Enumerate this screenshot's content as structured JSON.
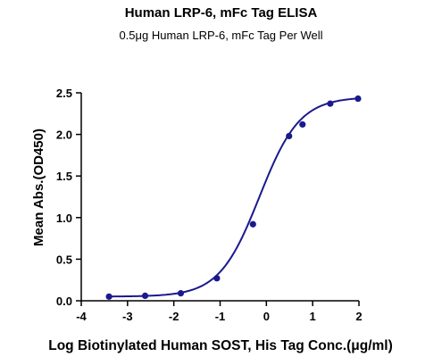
{
  "chart_data": {
    "type": "line",
    "title": "Human LRP-6, mFc Tag  ELISA",
    "subtitle": "0.5μg Human LRP-6, mFc Tag Per Well",
    "xlabel": "Log Biotinylated Human SOST, His Tag Conc.(μg/ml)",
    "ylabel": "Mean Abs.(OD450)",
    "xlim": [
      -4,
      2
    ],
    "ylim": [
      0,
      2.5
    ],
    "xticks": [
      "-4",
      "-3",
      "-2",
      "-1",
      "0",
      "1",
      "2"
    ],
    "yticks": [
      "0.0",
      "0.5",
      "1.0",
      "1.5",
      "2.0",
      "2.5"
    ],
    "grid": false,
    "color": "#1a1a8c",
    "series": [
      {
        "x": [
          -3.4,
          -2.62,
          -1.85,
          -1.07,
          -0.29,
          0.49,
          0.78,
          1.38,
          1.98
        ],
        "y": [
          0.05,
          0.06,
          0.09,
          0.27,
          0.92,
          1.98,
          2.12,
          2.37,
          2.43
        ]
      }
    ],
    "fit": {
      "bottom": 0.05,
      "top": 2.45,
      "logEC50": -0.15,
      "hill": 1.0
    }
  }
}
